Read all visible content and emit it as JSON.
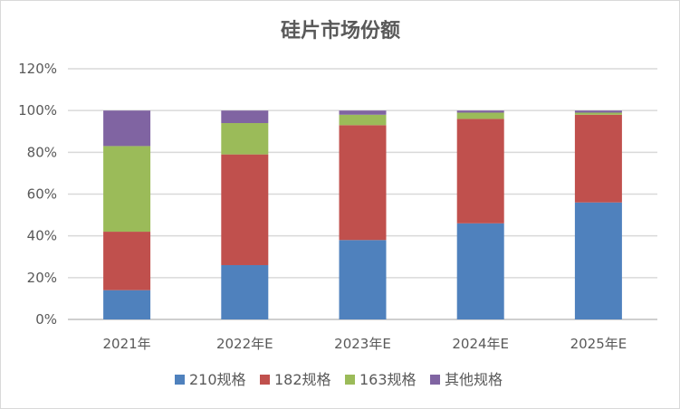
{
  "chart_data": {
    "type": "bar",
    "stacked": true,
    "title": "硅片市场份额",
    "categories": [
      "2021年",
      "2022年E",
      "2023年E",
      "2024年E",
      "2025年E"
    ],
    "series": [
      {
        "name": "210规格",
        "color": "#4f81bd",
        "values": [
          14,
          26,
          38,
          46,
          56
        ]
      },
      {
        "name": "182规格",
        "color": "#c0504d",
        "values": [
          28,
          53,
          55,
          50,
          42
        ]
      },
      {
        "name": "163规格",
        "color": "#9bbb59",
        "values": [
          41,
          15,
          5,
          3,
          1
        ]
      },
      {
        "name": "其他规格",
        "color": "#8064a2",
        "values": [
          17,
          6,
          2,
          1,
          1
        ]
      }
    ],
    "ylim": [
      0,
      120
    ],
    "yticks": [
      "0%",
      "20%",
      "40%",
      "60%",
      "80%",
      "100%",
      "120%"
    ],
    "grid": true,
    "legend": "bottom"
  }
}
